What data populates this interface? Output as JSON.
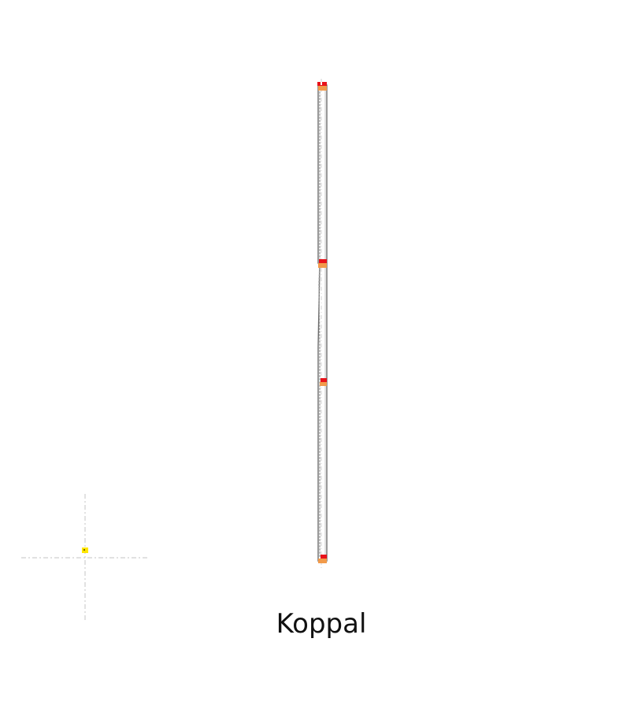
{
  "diagram": {
    "caption": "Koppal",
    "colors": {
      "background": "#ffffff",
      "outline": "#6e6e6e",
      "inner_line": "#9a9a9a",
      "axis": "#cfcfcf",
      "marker_top": "#e8121a",
      "marker_bottom": "#f29a4a",
      "origin_marker": "#ffe600"
    },
    "elements": {
      "marker_count": 4,
      "segment_count": 3,
      "origin_axes": true
    }
  }
}
